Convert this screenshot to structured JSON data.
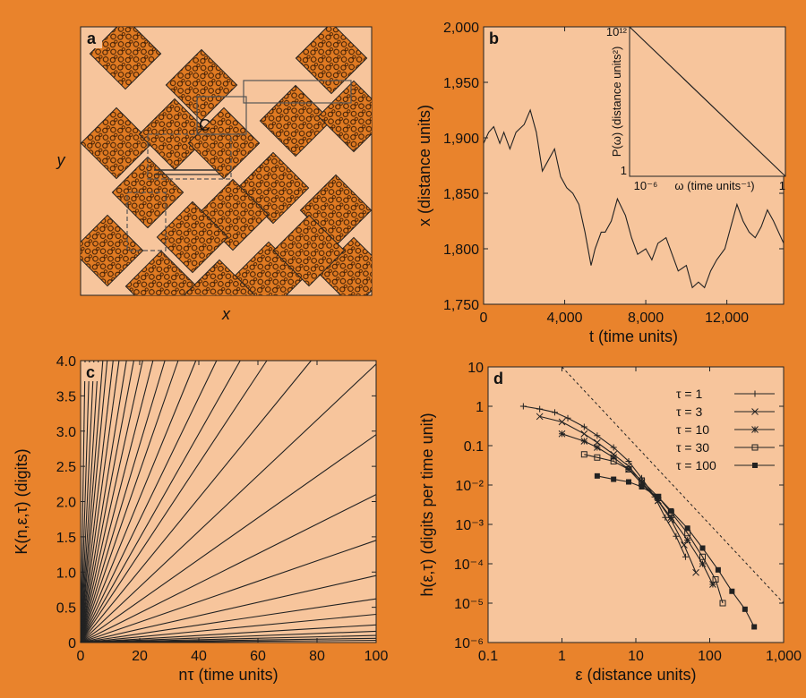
{
  "chart_data": [
    {
      "type": "diagram",
      "label": "a",
      "xlabel": "x",
      "ylabel": "y",
      "annotation": "C"
    },
    {
      "type": "line",
      "label": "b",
      "xlabel": "t (time units)",
      "ylabel": "x (distance units)",
      "color": "#222222",
      "xlim": [
        0,
        14800
      ],
      "xticks": [
        0,
        {
          "value": 4000,
          "label": "4,000"
        },
        {
          "value": 8000,
          "label": "8,000"
        },
        {
          "value": 12000,
          "label": "12,000"
        }
      ],
      "ylim": [
        1750,
        2000
      ],
      "yticks": [
        {
          "value": 1750,
          "label": "1,750"
        },
        {
          "value": 1800,
          "label": "1,800"
        },
        {
          "value": 1850,
          "label": "1,850"
        },
        {
          "value": 1900,
          "label": "1,900"
        },
        {
          "value": 1950,
          "label": "1,950"
        },
        {
          "value": 2000,
          "label": "2,000"
        }
      ],
      "series": [
        {
          "x": [
            0,
            250,
            500,
            800,
            1000,
            1300,
            1600,
            2000,
            2300,
            2600,
            2900,
            3200,
            3500,
            3800,
            4100,
            4400,
            4700,
            5000,
            5300,
            5500,
            5800,
            6000,
            6300,
            6600,
            7000,
            7300,
            7600,
            8000,
            8300,
            8600,
            9000,
            9300,
            9600,
            10000,
            10300,
            10600,
            10900,
            11200,
            11500,
            11900,
            12200,
            12500,
            12800,
            13100,
            13400,
            13700,
            14000,
            14300,
            14800
          ],
          "values": [
            1895,
            1905,
            1910,
            1895,
            1905,
            1890,
            1905,
            1912,
            1925,
            1905,
            1870,
            1880,
            1890,
            1865,
            1855,
            1850,
            1840,
            1815,
            1785,
            1800,
            1815,
            1815,
            1825,
            1845,
            1830,
            1810,
            1795,
            1800,
            1790,
            1805,
            1810,
            1795,
            1780,
            1785,
            1765,
            1770,
            1765,
            1780,
            1790,
            1800,
            1820,
            1840,
            1825,
            1815,
            1810,
            1820,
            1835,
            1825,
            1805
          ]
        }
      ]
    },
    {
      "type": "line",
      "xlabel": "ω (time units⁻¹)",
      "ylabel": "P(ω) (distance units²)",
      "color": "#222222",
      "xlog": true,
      "ylog": true,
      "xlim": [
        1e-06,
        1
      ],
      "xticks": [
        {
          "value": 1e-06,
          "label": "10⁻⁶"
        },
        1
      ],
      "ylim": [
        1,
        1000000000000
      ],
      "yticks": [
        1,
        {
          "value": 1000000000000,
          "label": "10¹²"
        }
      ],
      "series": [
        {
          "x": [
            1e-06,
            1
          ],
          "values": [
            1000000000000,
            1
          ]
        }
      ]
    },
    {
      "type": "line",
      "label": "c",
      "xlabel": "nτ (time units)",
      "ylabel": "K(n,ε,τ) (digits)",
      "color": "#222222",
      "xlim": [
        0,
        100
      ],
      "xticks": [
        0,
        20,
        40,
        60,
        80,
        100
      ],
      "ylim": [
        0,
        4
      ],
      "yticks": [
        0,
        0.5,
        {
          "value": 1,
          "label": "1.0"
        },
        1.5,
        {
          "value": 2,
          "label": "2.0"
        },
        2.5,
        {
          "value": 3,
          "label": "3.0"
        },
        3.5,
        {
          "value": 4,
          "label": "4.0"
        }
      ],
      "series": [
        {
          "x": [
            0,
            1.5
          ],
          "values": [
            0,
            4
          ]
        },
        {
          "x": [
            0,
            3
          ],
          "values": [
            0,
            4
          ]
        },
        {
          "x": [
            0,
            4.5
          ],
          "values": [
            0,
            4
          ]
        },
        {
          "x": [
            0,
            6
          ],
          "values": [
            0,
            4
          ]
        },
        {
          "x": [
            0,
            7.5
          ],
          "values": [
            0,
            4
          ]
        },
        {
          "x": [
            0,
            9
          ],
          "values": [
            0,
            4
          ]
        },
        {
          "x": [
            0,
            11
          ],
          "values": [
            0,
            4
          ]
        },
        {
          "x": [
            0,
            13
          ],
          "values": [
            0,
            4
          ]
        },
        {
          "x": [
            0,
            15.5
          ],
          "values": [
            0,
            4
          ]
        },
        {
          "x": [
            0,
            18
          ],
          "values": [
            0,
            4
          ]
        },
        {
          "x": [
            0,
            21
          ],
          "values": [
            0,
            4
          ]
        },
        {
          "x": [
            0,
            24.5
          ],
          "values": [
            0,
            4
          ]
        },
        {
          "x": [
            0,
            28.5
          ],
          "values": [
            0,
            4
          ]
        },
        {
          "x": [
            0,
            33
          ],
          "values": [
            0,
            4
          ]
        },
        {
          "x": [
            0,
            39
          ],
          "values": [
            0,
            4
          ]
        },
        {
          "x": [
            0,
            46
          ],
          "values": [
            0,
            4
          ]
        },
        {
          "x": [
            0,
            54
          ],
          "values": [
            0,
            4
          ]
        },
        {
          "x": [
            0,
            63
          ],
          "values": [
            0,
            4
          ]
        },
        {
          "x": [
            0,
            78
          ],
          "values": [
            0,
            4
          ]
        },
        {
          "x": [
            0,
            100
          ],
          "values": [
            0,
            3.95
          ]
        },
        {
          "x": [
            0,
            100
          ],
          "values": [
            0,
            2.95
          ]
        },
        {
          "x": [
            0,
            100
          ],
          "values": [
            0,
            2.1
          ]
        },
        {
          "x": [
            0,
            100
          ],
          "values": [
            0,
            1.45
          ]
        },
        {
          "x": [
            0,
            100
          ],
          "values": [
            0,
            0.95
          ]
        },
        {
          "x": [
            0,
            100
          ],
          "values": [
            0,
            0.62
          ]
        },
        {
          "x": [
            0,
            100
          ],
          "values": [
            0,
            0.4
          ]
        },
        {
          "x": [
            0,
            100
          ],
          "values": [
            0,
            0.25
          ]
        },
        {
          "x": [
            0,
            100
          ],
          "values": [
            0,
            0.16
          ]
        },
        {
          "x": [
            0,
            100
          ],
          "values": [
            0,
            0.1
          ]
        },
        {
          "x": [
            0,
            100
          ],
          "values": [
            0,
            0.06
          ]
        },
        {
          "x": [
            0,
            100
          ],
          "values": [
            0,
            0.03
          ]
        }
      ]
    },
    {
      "type": "line",
      "label": "d",
      "xlabel": "ε (distance units)",
      "ylabel": "h(ε,τ) (digits per time unit)",
      "xlog": true,
      "ylog": true,
      "legend": "upper right",
      "xlim": [
        0.1,
        1000
      ],
      "xticks": [
        0.1,
        1,
        10,
        100,
        {
          "value": 1000,
          "label": "1,000"
        }
      ],
      "ylim": [
        1e-06,
        10
      ],
      "yticks": [
        {
          "value": 1e-06,
          "label": "10⁻⁶"
        },
        {
          "value": 1e-05,
          "label": "10⁻⁵"
        },
        {
          "value": 0.0001,
          "label": "10⁻⁴"
        },
        {
          "value": 0.001,
          "label": "10⁻³"
        },
        {
          "value": 0.01,
          "label": "10⁻²"
        },
        0.1,
        1,
        10
      ],
      "series": [
        {
          "name": "τ = 1",
          "color": "#222222",
          "marker": "plus",
          "x": [
            0.3,
            0.5,
            0.8,
            1.2,
            2,
            3,
            5,
            8,
            12,
            18,
            25,
            35,
            47
          ],
          "values": [
            1,
            0.85,
            0.7,
            0.5,
            0.3,
            0.18,
            0.09,
            0.04,
            0.015,
            0.005,
            0.0015,
            0.0005,
            0.00015
          ]
        },
        {
          "name": "τ = 3",
          "color": "#222222",
          "marker": "cross",
          "x": [
            0.5,
            1,
            2,
            3,
            5,
            8,
            12,
            20,
            30,
            45,
            65
          ],
          "values": [
            0.55,
            0.4,
            0.2,
            0.12,
            0.06,
            0.03,
            0.012,
            0.004,
            0.0013,
            0.0003,
            6e-05
          ]
        },
        {
          "name": "τ = 10",
          "color": "#222222",
          "marker": "star",
          "x": [
            1,
            2,
            3,
            5,
            8,
            12,
            20,
            30,
            50,
            80,
            110
          ],
          "values": [
            0.2,
            0.13,
            0.09,
            0.05,
            0.025,
            0.011,
            0.004,
            0.0015,
            0.0004,
            0.0001,
            3e-05
          ]
        },
        {
          "name": "τ = 30",
          "color": "#222222",
          "marker": "square",
          "x": [
            2,
            3,
            5,
            8,
            12,
            20,
            30,
            50,
            80,
            120,
            150
          ],
          "values": [
            0.06,
            0.05,
            0.04,
            0.025,
            0.013,
            0.005,
            0.002,
            0.0006,
            0.00015,
            4e-05,
            1e-05
          ]
        },
        {
          "name": "τ = 100",
          "color": "#222222",
          "marker": "filled-square",
          "x": [
            3,
            5,
            8,
            12,
            20,
            30,
            50,
            80,
            130,
            200,
            300,
            400
          ],
          "values": [
            0.017,
            0.014,
            0.012,
            0.009,
            0.005,
            0.0022,
            0.0008,
            0.00025,
            7e-05,
            2e-05,
            7e-06,
            2.5e-06
          ]
        },
        {
          "color": "#222222",
          "style": "dotted",
          "x": [
            1,
            1000
          ],
          "values": [
            10,
            1e-05
          ]
        }
      ]
    }
  ]
}
